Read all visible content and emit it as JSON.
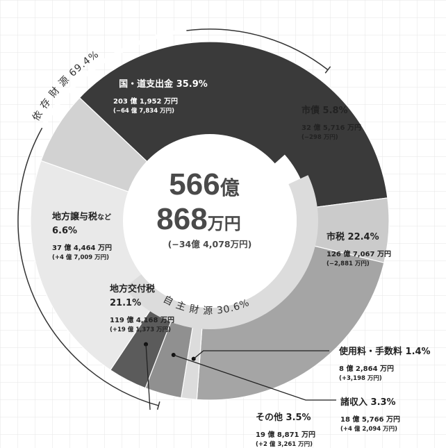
{
  "chart_data": {
    "type": "pie",
    "title": "",
    "total": {
      "number": "566",
      "oku": "億",
      "man_number": "868",
      "man_unit": "万円",
      "change": "(−34億 4,078万円)"
    },
    "segments": [
      {
        "key": "kokudou",
        "name": "国・道支出金",
        "percent": "35.9%",
        "value": 35.9,
        "amount": "203 億 1,952 万円",
        "change": "(−64 億 7,834 万円)",
        "color": "#3a3a3a",
        "text_color": "#ffffff"
      },
      {
        "key": "shisai",
        "name": "市債",
        "percent": "5.8%",
        "value": 5.8,
        "amount": "32 億 5,716 万円",
        "change": "(−298 万円)",
        "color": "#cbcbcb",
        "text_color": "#222222"
      },
      {
        "key": "shizei",
        "name": "市税",
        "percent": "22.4%",
        "value": 22.4,
        "amount": "126 億 7,067 万円",
        "change": "(−2,881 万円)",
        "color": "#a5a5a5",
        "text_color": "#222222"
      },
      {
        "key": "shiyoryo",
        "name": "使用料・手数料",
        "percent": "1.4%",
        "value": 1.4,
        "amount": "8 億 2,864 万円",
        "change": "(+3,198 万円)",
        "color": "#dcdcdc",
        "text_color": "#222222"
      },
      {
        "key": "shoshunyu",
        "name": "諸収入",
        "percent": "3.3%",
        "value": 3.3,
        "amount": "18 億 5,766 万円",
        "change": "(+4 億 2,094 万円)",
        "color": "#909090",
        "text_color": "#222222"
      },
      {
        "key": "sonota",
        "name": "その他",
        "percent": "3.5%",
        "value": 3.5,
        "amount": "19 億 8,871 万円",
        "change": "(+2 億 3,261 万円)",
        "color": "#5b5b5b",
        "text_color": "#222222"
      },
      {
        "key": "kofuzei",
        "name": "地方交付税",
        "percent": "21.1%",
        "value": 21.1,
        "amount": "119 億 4,168 万円",
        "change": "(+19 億 1,373 万円)",
        "color": "#e9e9e9",
        "text_color": "#222222"
      },
      {
        "key": "joyozei",
        "name": "地方譲与税",
        "name_suffix": "など",
        "percent": "6.6%",
        "value": 6.6,
        "amount": "37 億 4,464 万円",
        "change": "(+4 億 7,009 万円)",
        "color": "#d2d2d2",
        "text_color": "#222222"
      }
    ],
    "groups": {
      "izon": {
        "label": "依 存 財 源",
        "percent": "69.4%",
        "value": 69.4
      },
      "jishu": {
        "label": "自 主 財 源",
        "percent": "30.6%",
        "value": 30.6
      }
    }
  }
}
